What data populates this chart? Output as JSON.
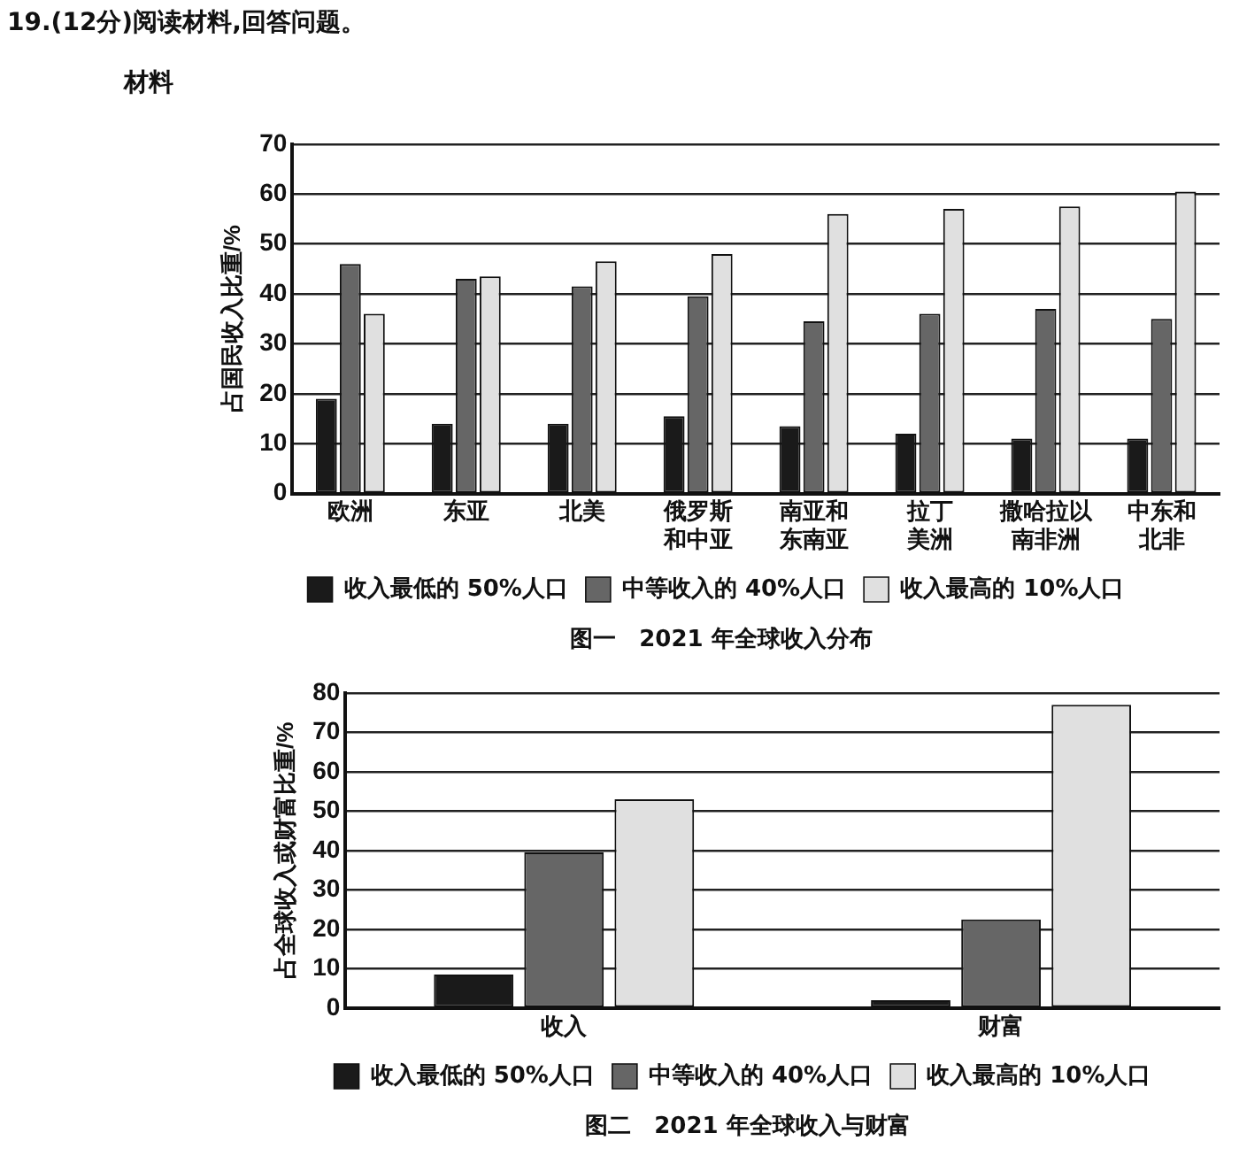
{
  "chart_data": [
    {
      "type": "bar",
      "title": "图一　2021 年全球收入分布",
      "annotations": [
        "19.(12分)阅读材料,回答问题。",
        "材料"
      ],
      "ylabel": "占国民收入比重/%",
      "categories": [
        "欧洲",
        "东亚",
        "北美",
        "俄罗斯和中亚",
        "南亚和东南亚",
        "拉丁美洲",
        "撒哈拉以南非洲",
        "中东和北非"
      ],
      "series": [
        {
          "name": "收入最低的 50%人口",
          "color": "#1a1a1a",
          "values": [
            19,
            14,
            14,
            15.5,
            13.5,
            12,
            11,
            11
          ]
        },
        {
          "name": "中等收入的 40%人口",
          "color": "#666666",
          "values": [
            46,
            43,
            41.5,
            39.5,
            34.5,
            36,
            37,
            35
          ]
        },
        {
          "name": "收入最高的 10%人口",
          "color": "#e0e0e0",
          "values": [
            36,
            43.5,
            46.5,
            48,
            56,
            57,
            57.5,
            60.5
          ]
        }
      ],
      "ylim": [
        0,
        70
      ],
      "yticks": [
        0,
        10,
        20,
        30,
        40,
        50,
        60,
        70
      ],
      "grid": "y",
      "legend": "bottom"
    },
    {
      "type": "bar",
      "title": "图二　2021 年全球收入与财富",
      "ylabel": "占全球收入或财富比重/%",
      "categories": [
        "收入",
        "财富"
      ],
      "series": [
        {
          "name": "收入最低的 50%人口",
          "color": "#1a1a1a",
          "values": [
            8.5,
            2
          ]
        },
        {
          "name": "中等收入的 40%人口",
          "color": "#666666",
          "values": [
            39.5,
            22.5
          ]
        },
        {
          "name": "收入最高的 10%人口",
          "color": "#e0e0e0",
          "values": [
            53,
            77
          ]
        }
      ],
      "ylim": [
        0,
        80
      ],
      "yticks": [
        0,
        10,
        20,
        30,
        40,
        50,
        60,
        70,
        80
      ],
      "grid": "y",
      "legend": "bottom"
    }
  ]
}
